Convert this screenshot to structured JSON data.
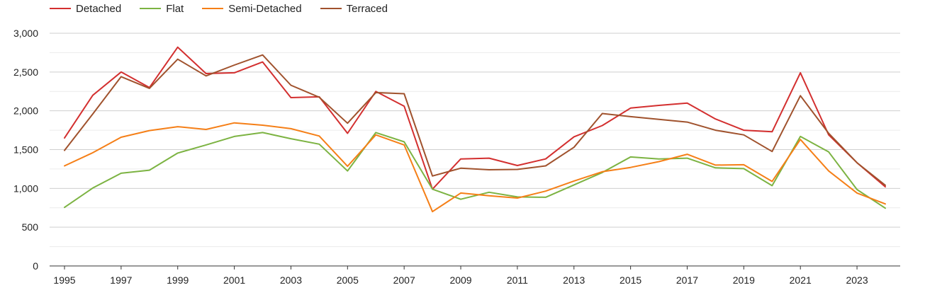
{
  "chart_data": {
    "type": "line",
    "title": "",
    "xlabel": "",
    "ylabel": "",
    "ylim": [
      0,
      3000
    ],
    "yticks": [
      0,
      500,
      1000,
      1500,
      2000,
      2500,
      3000
    ],
    "ytick_labels": [
      "0",
      "500",
      "1,000",
      "1,500",
      "2,000",
      "2,500",
      "3,000"
    ],
    "xlim": [
      1995,
      2024
    ],
    "xticks": [
      1995,
      1997,
      1999,
      2001,
      2003,
      2005,
      2007,
      2009,
      2011,
      2013,
      2015,
      2017,
      2019,
      2021,
      2023
    ],
    "xtick_labels": [
      "1995",
      "1997",
      "1999",
      "2001",
      "2003",
      "2005",
      "2007",
      "2009",
      "2011",
      "2013",
      "2015",
      "2017",
      "2019",
      "2021",
      "2023"
    ],
    "grid": true,
    "legend_position": "top-left",
    "x": [
      1995,
      1996,
      1997,
      1998,
      1999,
      2000,
      2001,
      2002,
      2003,
      2004,
      2005,
      2006,
      2007,
      2008,
      2009,
      2010,
      2011,
      2012,
      2013,
      2014,
      2015,
      2016,
      2017,
      2018,
      2019,
      2020,
      2021,
      2022,
      2023,
      2024
    ],
    "series": [
      {
        "name": "Detached",
        "color": "#d32f2f",
        "values": [
          1650,
          2200,
          2500,
          2300,
          2820,
          2480,
          2490,
          2630,
          2170,
          2180,
          1710,
          2250,
          2060,
          990,
          1380,
          1390,
          1295,
          1380,
          1665,
          1810,
          2035,
          2070,
          2100,
          1895,
          1750,
          1730,
          2490,
          1690,
          1330,
          1020
        ]
      },
      {
        "name": "Flat",
        "color": "#7cb342",
        "values": [
          755,
          1005,
          1195,
          1235,
          1455,
          1560,
          1670,
          1720,
          1640,
          1570,
          1225,
          1720,
          1600,
          990,
          860,
          950,
          890,
          885,
          1045,
          1205,
          1405,
          1380,
          1390,
          1265,
          1255,
          1035,
          1670,
          1470,
          985,
          745
        ]
      },
      {
        "name": "Semi-Detached",
        "color": "#f57f17",
        "values": [
          1290,
          1460,
          1660,
          1745,
          1795,
          1760,
          1845,
          1815,
          1770,
          1675,
          1285,
          1690,
          1560,
          700,
          940,
          905,
          875,
          965,
          1095,
          1215,
          1270,
          1345,
          1440,
          1300,
          1305,
          1090,
          1630,
          1225,
          940,
          800
        ]
      },
      {
        "name": "Terraced",
        "color": "#a0522d",
        "values": [
          1490,
          1960,
          2440,
          2290,
          2665,
          2450,
          2590,
          2720,
          2330,
          2175,
          1840,
          2235,
          2220,
          1160,
          1260,
          1240,
          1245,
          1290,
          1530,
          1965,
          1925,
          1890,
          1855,
          1750,
          1690,
          1475,
          2195,
          1710,
          1330,
          1040
        ]
      }
    ]
  }
}
